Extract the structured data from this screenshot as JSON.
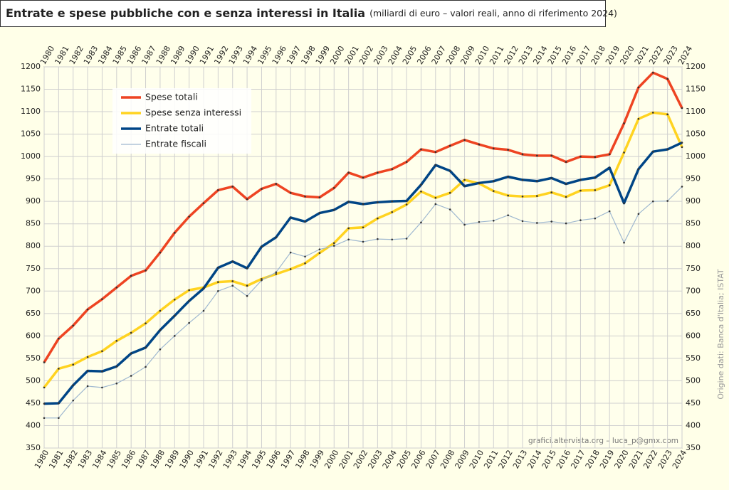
{
  "chart_data": {
    "type": "line",
    "title": "Entrate e spese pubbliche con e senza interessi in Italia",
    "subtitle": "(miliardi di euro – valori reali, anno di riferimento 2024)",
    "source": "Origine dati: Banca d'Italia; ISTAT",
    "credit": "grafici.altervista.org – luca_p@gmx.com",
    "categories": [
      "1980",
      "1981",
      "1982",
      "1983",
      "1984",
      "1985",
      "1986",
      "1987",
      "1988",
      "1989",
      "1990",
      "1991",
      "1992",
      "1993",
      "1994",
      "1995",
      "1996",
      "1997",
      "1998",
      "1999",
      "2000",
      "2001",
      "2002",
      "2003",
      "2004",
      "2005",
      "2006",
      "2007",
      "2008",
      "2009",
      "2010",
      "2011",
      "2012",
      "2013",
      "2014",
      "2015",
      "2016",
      "2017",
      "2018",
      "2019",
      "2020",
      "2021",
      "2022",
      "2023",
      "2024"
    ],
    "series": [
      {
        "name": "Spese totali",
        "color": "#ee4422",
        "width": 3.5,
        "values": [
          541,
          594,
          623,
          659,
          682,
          708,
          734,
          746,
          786,
          830,
          866,
          896,
          925,
          933,
          905,
          928,
          939,
          919,
          911,
          909,
          930,
          964,
          953,
          964,
          972,
          988,
          1016,
          1010,
          1024,
          1037,
          1027,
          1018,
          1015,
          1005,
          1002,
          1002,
          988,
          1000,
          999,
          1005,
          1074,
          1154,
          1187,
          1173,
          1108
        ]
      },
      {
        "name": "Spese senza interessi",
        "color": "#ffd320",
        "width": 3.5,
        "values": [
          485,
          527,
          536,
          553,
          566,
          589,
          607,
          628,
          656,
          681,
          702,
          708,
          720,
          722,
          712,
          727,
          738,
          749,
          762,
          785,
          807,
          840,
          842,
          862,
          876,
          893,
          922,
          908,
          919,
          948,
          940,
          923,
          913,
          911,
          912,
          920,
          910,
          924,
          925,
          936,
          1009,
          1084,
          1098,
          1094,
          1021
        ]
      },
      {
        "name": "Entrate totali",
        "color": "#004586",
        "width": 3.5,
        "values": [
          449,
          450,
          490,
          522,
          521,
          532,
          561,
          574,
          613,
          645,
          678,
          706,
          752,
          766,
          751,
          799,
          820,
          864,
          855,
          874,
          881,
          899,
          894,
          898,
          900,
          901,
          937,
          981,
          968,
          934,
          941,
          945,
          955,
          948,
          945,
          952,
          939,
          948,
          953,
          975,
          896,
          972,
          1011,
          1016,
          1031
        ]
      },
      {
        "name": "Entrate fiscali",
        "color": "#9fb8d0",
        "width": 1.2,
        "values": [
          417,
          417,
          456,
          488,
          485,
          494,
          511,
          531,
          570,
          600,
          629,
          656,
          700,
          712,
          689,
          724,
          742,
          786,
          777,
          793,
          801,
          815,
          810,
          816,
          815,
          817,
          853,
          894,
          882,
          848,
          854,
          857,
          869,
          856,
          852,
          855,
          851,
          858,
          862,
          878,
          808,
          872,
          900,
          901,
          933
        ]
      }
    ],
    "ylim": [
      350,
      1200
    ],
    "yticks": [
      350,
      400,
      450,
      500,
      550,
      600,
      650,
      700,
      750,
      800,
      850,
      900,
      950,
      1000,
      1050,
      1100,
      1150,
      1200
    ],
    "grid": true,
    "legend": "upper left"
  }
}
